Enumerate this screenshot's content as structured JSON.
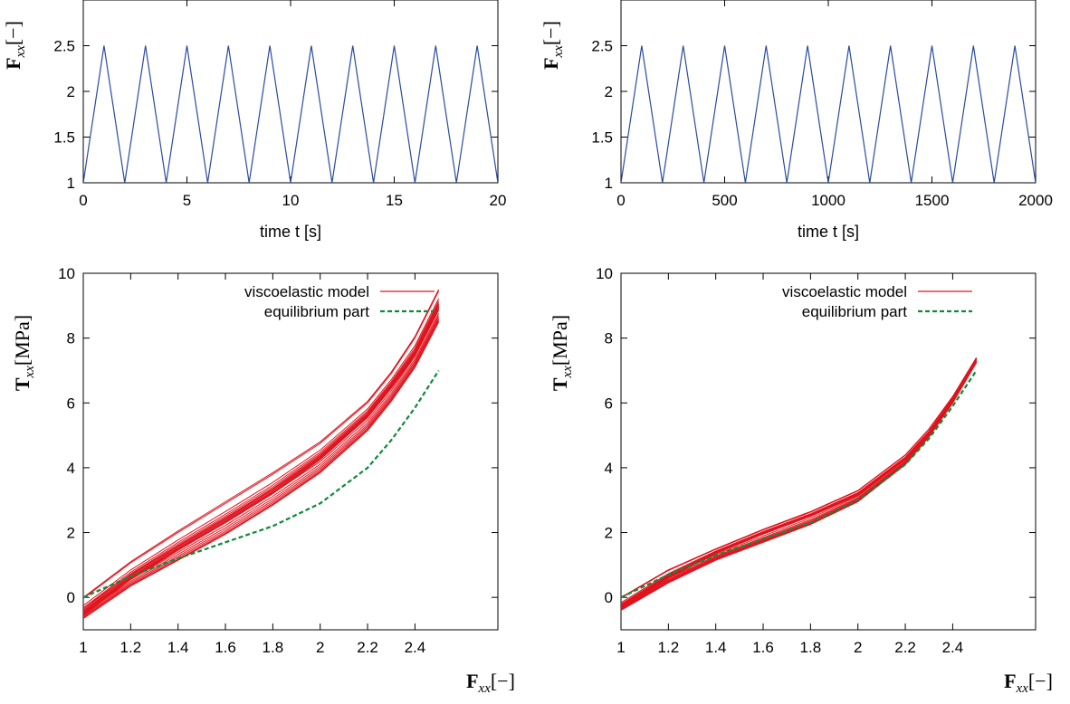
{
  "chart_data": [
    {
      "type": "line",
      "panel": "top-left",
      "xlabel": "time t [s]",
      "ylabel": {
        "main": "F",
        "sub": "xx",
        "unit": "[−]"
      },
      "xlim": [
        0,
        20
      ],
      "ylim": [
        1,
        3
      ],
      "xticks": [
        "0",
        "5",
        "10",
        "15",
        "20"
      ],
      "yticks": [
        "1",
        "1.5",
        "2",
        "2.5"
      ],
      "series": [
        {
          "color": "#2a4ba0",
          "x": [
            0,
            1,
            2,
            3,
            4,
            5,
            6,
            7,
            8,
            9,
            10,
            11,
            12,
            13,
            14,
            15,
            16,
            17,
            18,
            19,
            20
          ],
          "y": [
            1,
            2.5,
            1,
            2.5,
            1,
            2.5,
            1,
            2.5,
            1,
            2.5,
            1,
            2.5,
            1,
            2.5,
            1,
            2.5,
            1,
            2.5,
            1,
            2.5,
            1
          ]
        }
      ]
    },
    {
      "type": "line",
      "panel": "top-right",
      "xlabel": "time t [s]",
      "ylabel": {
        "main": "F",
        "sub": "xx",
        "unit": "[−]"
      },
      "xlim": [
        0,
        2000
      ],
      "ylim": [
        1,
        3
      ],
      "xticks": [
        "0",
        "500",
        "1000",
        "1500",
        "2000"
      ],
      "yticks": [
        "1",
        "1.5",
        "2",
        "2.5"
      ],
      "series": [
        {
          "color": "#2a4ba0",
          "x": [
            0,
            100,
            200,
            300,
            400,
            500,
            600,
            700,
            800,
            900,
            1000,
            1100,
            1200,
            1300,
            1400,
            1500,
            1600,
            1700,
            1800,
            1900,
            2000
          ],
          "y": [
            1,
            2.5,
            1,
            2.5,
            1,
            2.5,
            1,
            2.5,
            1,
            2.5,
            1,
            2.5,
            1,
            2.5,
            1,
            2.5,
            1,
            2.5,
            1,
            2.5,
            1
          ]
        }
      ]
    },
    {
      "type": "line",
      "panel": "bottom-left",
      "xlabel": {
        "main": "F",
        "sub": "xx",
        "unit": "[−]"
      },
      "ylabel": {
        "main": "T",
        "sub": "xx",
        "unit": "[MPa]"
      },
      "xlim": [
        1,
        2.75
      ],
      "ylim": [
        -1,
        10
      ],
      "xticks": [
        "1",
        "1.2",
        "1.4",
        "1.6",
        "1.8",
        "2",
        "2.2",
        "2.4"
      ],
      "yticks": [
        "0",
        "2",
        "4",
        "6",
        "8",
        "10"
      ],
      "legend": {
        "position": "top-right",
        "entries": [
          "viscoelastic model",
          "equilibrium part"
        ]
      },
      "series": [
        {
          "name": "viscoelastic model",
          "color": "#e0141e",
          "cycles": 10,
          "x": [
            1.0,
            1.2,
            1.4,
            1.6,
            1.8,
            2.0,
            2.2,
            2.3,
            2.4,
            2.5
          ],
          "loading_first": [
            0.0,
            1.1,
            2.05,
            2.95,
            3.85,
            4.8,
            6.05,
            6.95,
            8.05,
            9.5
          ],
          "loading_last": [
            -0.55,
            0.55,
            1.45,
            2.3,
            3.2,
            4.25,
            5.55,
            6.45,
            7.45,
            8.9
          ],
          "unloading_last": [
            -0.65,
            0.35,
            1.15,
            1.95,
            2.85,
            3.85,
            5.15,
            6.05,
            7.1,
            8.5
          ]
        },
        {
          "name": "equilibrium part",
          "color": "#0e8a3a",
          "dashed": true,
          "x": [
            1.0,
            1.2,
            1.4,
            1.6,
            1.8,
            2.0,
            2.2,
            2.3,
            2.4,
            2.5
          ],
          "y": [
            0.0,
            0.65,
            1.2,
            1.7,
            2.2,
            2.9,
            4.0,
            4.85,
            5.85,
            7.0
          ]
        }
      ]
    },
    {
      "type": "line",
      "panel": "bottom-right",
      "xlabel": {
        "main": "F",
        "sub": "xx",
        "unit": "[−]"
      },
      "ylabel": {
        "main": "T",
        "sub": "xx",
        "unit": "[MPa]"
      },
      "xlim": [
        1,
        2.75
      ],
      "ylim": [
        -1,
        10
      ],
      "xticks": [
        "1",
        "1.2",
        "1.4",
        "1.6",
        "1.8",
        "2",
        "2.2",
        "2.4"
      ],
      "yticks": [
        "0",
        "2",
        "4",
        "6",
        "8",
        "10"
      ],
      "legend": {
        "position": "top-right",
        "entries": [
          "viscoelastic model",
          "equilibrium part"
        ]
      },
      "series": [
        {
          "name": "viscoelastic model",
          "color": "#e0141e",
          "cycles": 10,
          "x": [
            1.0,
            1.2,
            1.4,
            1.6,
            1.8,
            2.0,
            2.2,
            2.3,
            2.4,
            2.5
          ],
          "loading_first": [
            0.0,
            0.85,
            1.5,
            2.1,
            2.65,
            3.3,
            4.4,
            5.2,
            6.2,
            7.4
          ],
          "loading_last": [
            -0.35,
            0.6,
            1.35,
            1.95,
            2.5,
            3.15,
            4.25,
            5.05,
            6.1,
            7.35
          ],
          "unloading_last": [
            -0.4,
            0.45,
            1.15,
            1.7,
            2.25,
            2.95,
            4.1,
            4.95,
            6.0,
            7.25
          ]
        },
        {
          "name": "equilibrium part",
          "color": "#0e8a3a",
          "dashed": true,
          "x": [
            1.0,
            1.2,
            1.4,
            1.6,
            1.8,
            2.0,
            2.2,
            2.3,
            2.4,
            2.5
          ],
          "y": [
            0.0,
            0.7,
            1.3,
            1.8,
            2.3,
            3.0,
            4.1,
            4.9,
            5.9,
            7.0
          ]
        }
      ]
    }
  ]
}
